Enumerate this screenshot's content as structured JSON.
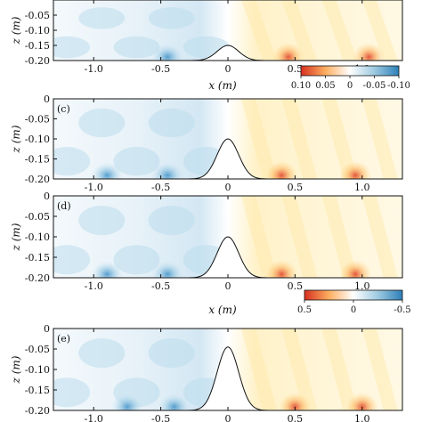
{
  "chart_data": {
    "type": "heatmap",
    "shared": {
      "xlim": [
        -1.3,
        1.3
      ],
      "ylim": [
        -0.2,
        0.0
      ],
      "xticks": [
        -1.0,
        -0.5,
        0,
        0.5,
        1.0
      ],
      "xtick_labels": [
        "-1.0",
        "-0.5",
        "0",
        "0.5",
        "1.0"
      ],
      "yticks": [
        0,
        -0.05,
        -0.1,
        -0.15,
        -0.2
      ],
      "ytick_labels": [
        "0",
        "-0.05",
        "-0.10",
        "-0.15",
        "-0.20"
      ],
      "xlabel": "x (m)",
      "ylabel": "z (m)",
      "bump": {
        "center": 0.0,
        "top_z": -0.045,
        "half_width": 0.18
      },
      "colormap": {
        "positive": "#d7301f",
        "mid_positive": "#fdae61",
        "zero": "#ffffff",
        "mid_negative": "#9ecae1",
        "negative": "#2c7fb8"
      }
    },
    "colorbars": [
      {
        "ticks": [
          0.1,
          0.05,
          0,
          -0.05,
          -0.1
        ],
        "tick_labels": [
          "0.10",
          "0.05",
          "0",
          "-0.05",
          "-0.10"
        ],
        "vmin": -0.1,
        "vmax": 0.1
      },
      {
        "ticks": [
          0.5,
          0,
          -0.5
        ],
        "tick_labels": [
          "0.5",
          "0",
          "-0.5"
        ],
        "vmin": -0.5,
        "vmax": 0.5
      }
    ],
    "panels": [
      {
        "label": "",
        "bump_top": -0.15,
        "hotspots": [
          0.45,
          1.05
        ],
        "coldspots": [
          -0.45
        ],
        "yticks_shown": [
          "-0.05",
          "-0.10",
          "-0.15",
          "-0.20"
        ]
      },
      {
        "label": "(c)",
        "bump_top": -0.1,
        "hotspots": [
          0.4,
          0.95
        ],
        "coldspots": [
          -0.45,
          -0.9
        ],
        "yticks_shown": [
          "0",
          "-0.05",
          "-0.10",
          "-0.15",
          "-0.20"
        ]
      },
      {
        "label": "(d)",
        "bump_top": -0.1,
        "hotspots": [
          0.4,
          0.95
        ],
        "coldspots": [
          -0.45,
          -0.9
        ],
        "yticks_shown": [
          "0",
          "-0.05",
          "-0.10",
          "-0.15",
          "-0.20"
        ]
      },
      {
        "label": "(e)",
        "bump_top": -0.045,
        "hotspots": [
          0.5,
          1.0
        ],
        "coldspots": [
          -0.4,
          -0.75
        ],
        "yticks_shown": [
          "0",
          "-0.05",
          "-0.10",
          "-0.15",
          "-0.20"
        ]
      }
    ]
  }
}
